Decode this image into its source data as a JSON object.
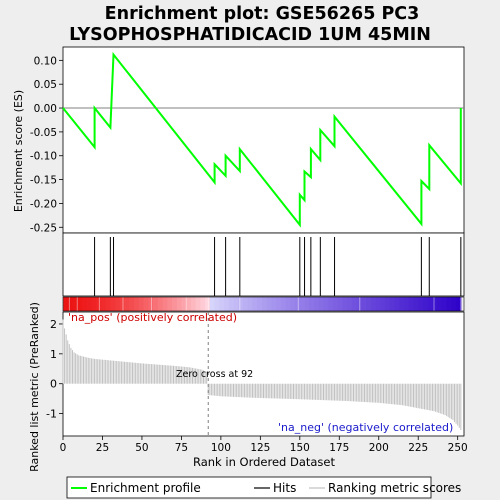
{
  "title_line1": "Enrichment plot: GSE56265 PC3",
  "title_line2": "LYSOPHOSPHATIDICACID  1UM 45MIN",
  "es_ylabel": "Enrichment score (ES)",
  "rank_ylabel": "Ranked list metric (PreRanked)",
  "xlabel": "Rank in Ordered Dataset",
  "pos_label": "'na_pos' (positively correlated)",
  "neg_label": "'na_neg' (negatively correlated)",
  "zero_cross_label": "Zero cross at 92",
  "legend": {
    "enrichment": "Enrichment profile",
    "hits": "Hits",
    "ranking": "Ranking metric scores"
  },
  "colors": {
    "enrichment_line": "#00ff00",
    "hit_line": "#000000",
    "ranking_bars": "#c0c0c0",
    "pos_label": "#cc0000",
    "neg_label": "#1a1acc"
  },
  "chart_data": {
    "type": "line",
    "x_ticks": [
      0,
      25,
      50,
      75,
      100,
      125,
      150,
      175,
      200,
      225,
      250
    ],
    "xlim": [
      0,
      254
    ],
    "es_yticks": [
      0.1,
      0.05,
      0.0,
      -0.05,
      -0.1,
      -0.15,
      -0.2,
      -0.25
    ],
    "es_ylim": [
      -0.262,
      0.128
    ],
    "rank_yticks": [
      2,
      1,
      0,
      -1
    ],
    "rank_ylim": [
      -1.75,
      2.4
    ],
    "zero_cross": 92,
    "n_genes": 252,
    "hits": [
      20,
      30,
      32,
      96,
      103,
      112,
      150,
      153,
      157,
      163,
      172,
      227,
      232,
      252
    ],
    "es_profile": [
      [
        0,
        0.0
      ],
      [
        20,
        -0.082
      ],
      [
        20,
        0.0
      ],
      [
        30,
        -0.041
      ],
      [
        32,
        0.112
      ],
      [
        96,
        -0.156
      ],
      [
        96,
        -0.118
      ],
      [
        103,
        -0.142
      ],
      [
        103,
        -0.1
      ],
      [
        112,
        -0.132
      ],
      [
        112,
        -0.086
      ],
      [
        150,
        -0.245
      ],
      [
        150,
        -0.182
      ],
      [
        153,
        -0.193
      ],
      [
        153,
        -0.133
      ],
      [
        157,
        -0.145
      ],
      [
        157,
        -0.086
      ],
      [
        163,
        -0.109
      ],
      [
        163,
        -0.046
      ],
      [
        172,
        -0.08
      ],
      [
        172,
        -0.018
      ],
      [
        227,
        -0.243
      ],
      [
        227,
        -0.153
      ],
      [
        232,
        -0.17
      ],
      [
        232,
        -0.078
      ],
      [
        252,
        -0.158
      ],
      [
        252,
        0.0
      ]
    ],
    "ranking_metric": [
      [
        0,
        2.15
      ],
      [
        1,
        1.85
      ],
      [
        2,
        1.65
      ],
      [
        3,
        1.45
      ],
      [
        5,
        1.2
      ],
      [
        7,
        1.05
      ],
      [
        10,
        0.95
      ],
      [
        15,
        0.88
      ],
      [
        20,
        0.83
      ],
      [
        30,
        0.78
      ],
      [
        40,
        0.73
      ],
      [
        50,
        0.68
      ],
      [
        60,
        0.64
      ],
      [
        70,
        0.6
      ],
      [
        80,
        0.55
      ],
      [
        88,
        0.47
      ],
      [
        91,
        0.4
      ],
      [
        92,
        -0.38
      ],
      [
        100,
        -0.42
      ],
      [
        120,
        -0.47
      ],
      [
        150,
        -0.52
      ],
      [
        180,
        -0.58
      ],
      [
        200,
        -0.64
      ],
      [
        215,
        -0.72
      ],
      [
        225,
        -0.82
      ],
      [
        235,
        -0.92
      ],
      [
        242,
        -1.05
      ],
      [
        247,
        -1.22
      ],
      [
        250,
        -1.4
      ],
      [
        252,
        -1.55
      ]
    ]
  }
}
